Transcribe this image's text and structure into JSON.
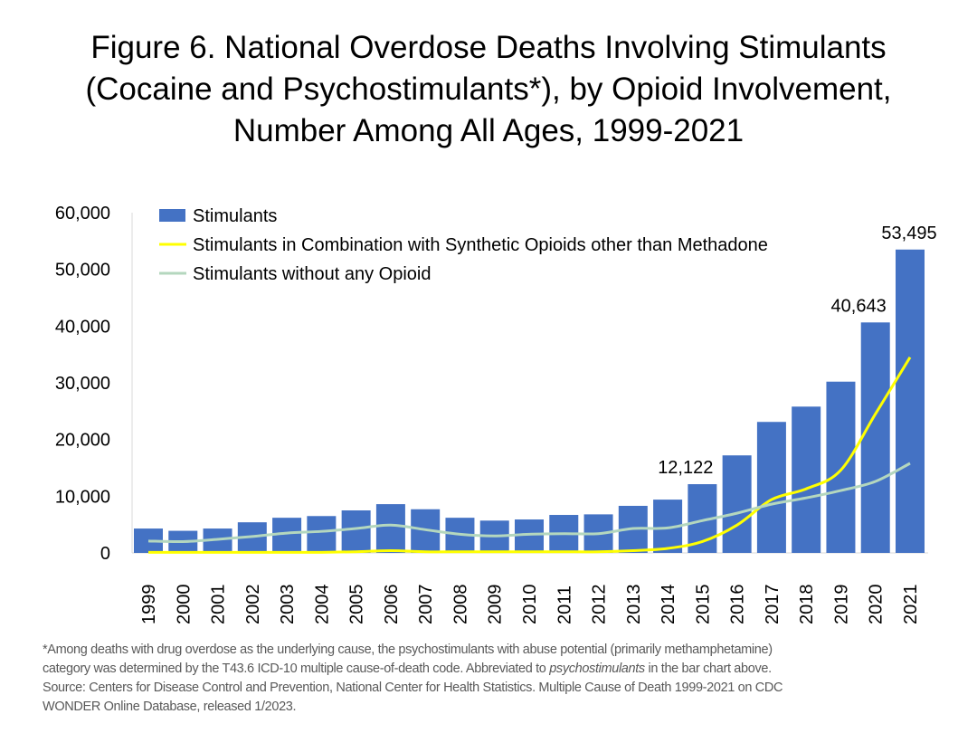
{
  "chart_data": {
    "type": "bar",
    "title": [
      "Figure 6. National Overdose Deaths Involving Stimulants",
      "(Cocaine and Psychostimulants*), by Opioid Involvement,",
      "Number Among All Ages, 1999-2021"
    ],
    "xlabel": "",
    "ylabel": "",
    "ylim": [
      0,
      60000
    ],
    "yticks": [
      "0",
      "10,000",
      "20,000",
      "30,000",
      "40,000",
      "50,000",
      "60,000"
    ],
    "grid": false,
    "legend_position": "top-left",
    "categories": [
      "1999",
      "2000",
      "2001",
      "2002",
      "2003",
      "2004",
      "2005",
      "2006",
      "2007",
      "2008",
      "2009",
      "2010",
      "2011",
      "2012",
      "2013",
      "2014",
      "2015",
      "2016",
      "2017",
      "2018",
      "2019",
      "2020",
      "2021"
    ],
    "series": [
      {
        "name": "Stimulants",
        "type": "bar",
        "color": "#4472C4",
        "values": [
          4300,
          3900,
          4300,
          5400,
          6200,
          6500,
          7500,
          8600,
          7700,
          6200,
          5700,
          5900,
          6700,
          6800,
          8300,
          9400,
          12122,
          17200,
          23100,
          25800,
          30200,
          40643,
          53495
        ]
      },
      {
        "name": "Stimulants in Combination with Synthetic Opioids other than Methadone",
        "type": "line",
        "color": "#FFFF00",
        "values": [
          100,
          100,
          100,
          100,
          100,
          100,
          200,
          400,
          200,
          200,
          200,
          200,
          200,
          200,
          400,
          800,
          2000,
          4900,
          9400,
          11300,
          14600,
          24500,
          34500
        ]
      },
      {
        "name": "Stimulants without any Opioid",
        "type": "line",
        "color": "#B4D7BE",
        "values": [
          2100,
          2000,
          2400,
          2900,
          3500,
          3800,
          4300,
          4900,
          4100,
          3300,
          3000,
          3300,
          3400,
          3400,
          4300,
          4400,
          5700,
          7000,
          8600,
          9700,
          11000,
          12600,
          15800
        ]
      }
    ],
    "data_labels": [
      {
        "category": "2015",
        "text": "12,122"
      },
      {
        "category": "2020",
        "text": "40,643"
      },
      {
        "category": "2021",
        "text": "53,495"
      }
    ]
  },
  "footnote": {
    "line1": "*Among deaths with drug overdose as the underlying cause, the psychostimulants with abuse potential (primarily methamphetamine)",
    "line2_pre": "category was determined by the T43.6 ICD-10 multiple cause-of-death code. Abbreviated to ",
    "line2_italic": "psychostimulants",
    "line2_post": " in the bar chart above.",
    "line3": "Source: Centers for Disease Control and Prevention, National Center for Health Statistics. Multiple Cause of Death 1999-2021 on CDC",
    "line4": "WONDER Online Database, released 1/2023."
  }
}
